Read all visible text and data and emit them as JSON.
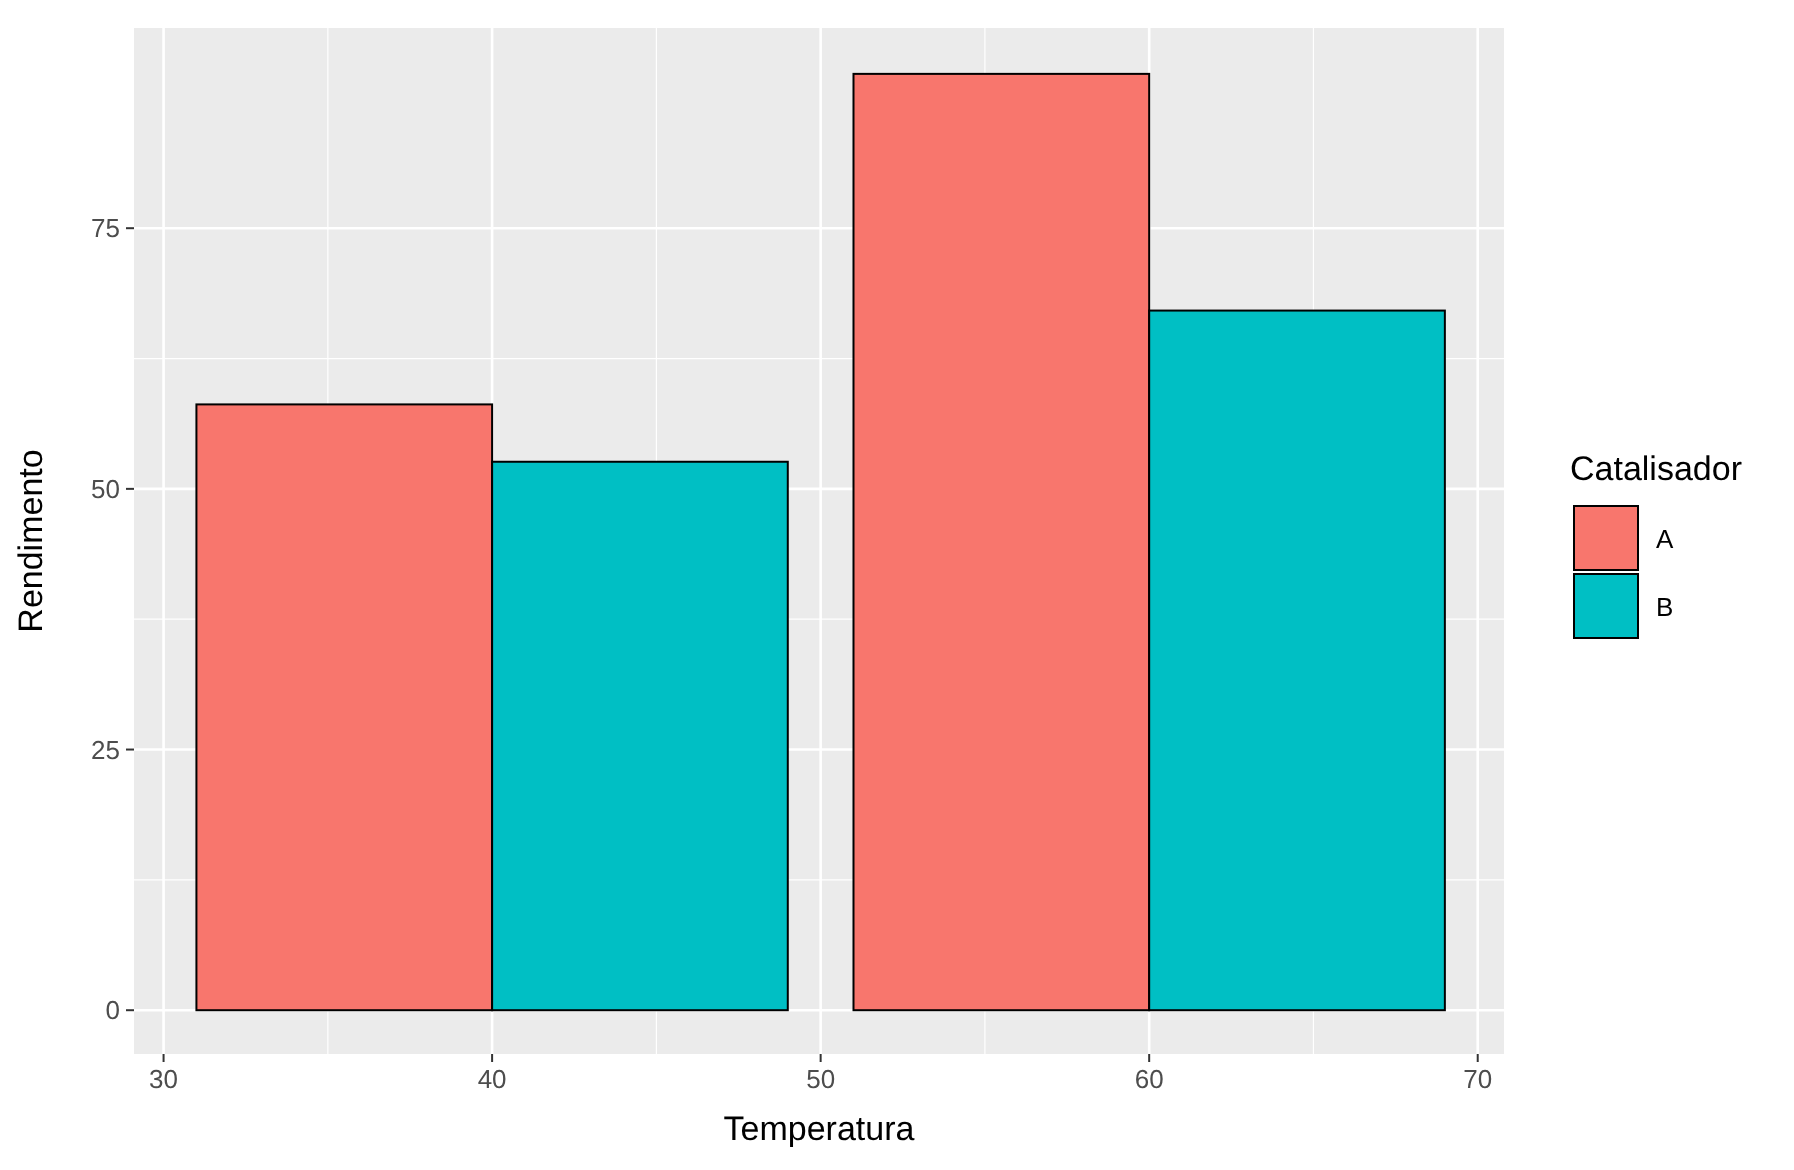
{
  "chart_data": {
    "type": "bar",
    "xlabel": "Temperatura",
    "ylabel": "Rendimento",
    "legend_title": "Catalisador",
    "legend": "right",
    "grid": true,
    "x": [
      40,
      60
    ],
    "series": [
      {
        "name": "A",
        "color": "#f8766d",
        "values": [
          58.1,
          89.8
        ]
      },
      {
        "name": "B",
        "color": "#00bfc4",
        "values": [
          52.6,
          67.1
        ]
      }
    ],
    "xlim": [
      29.1,
      70.8
    ],
    "xticks": [
      30,
      40,
      50,
      60,
      70
    ],
    "ylim": [
      -4.2,
      94.2
    ],
    "yticks": [
      0,
      25,
      50,
      75
    ]
  }
}
